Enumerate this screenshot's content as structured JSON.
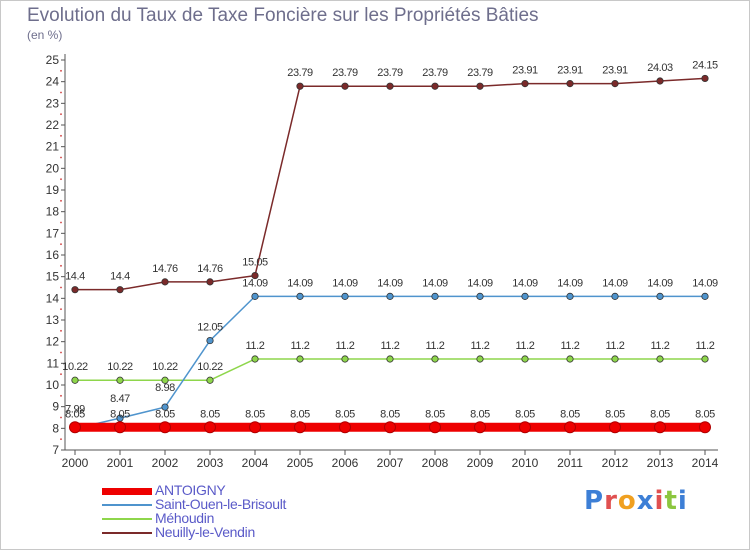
{
  "title": "Evolution du Taux de Taxe Foncière sur les Propriétés Bâties",
  "unit_label": "(en %)",
  "logo": {
    "letters": [
      "P",
      "r",
      "o",
      "x",
      "i",
      "t",
      "i"
    ],
    "colors": [
      "#3d7fd6",
      "#e05050",
      "#f0a020",
      "#3d7fd6",
      "#e05050",
      "#8cc63f",
      "#3d7fd6"
    ]
  },
  "chart_data": {
    "type": "line",
    "title": "Evolution du Taux de Taxe Foncière sur les Propriétés Bâties",
    "ylabel": "(en %)",
    "xlabel": "",
    "x": [
      "2000",
      "2001",
      "2002",
      "2003",
      "2004",
      "2005",
      "2006",
      "2007",
      "2008",
      "2009",
      "2010",
      "2011",
      "2012",
      "2013",
      "2014"
    ],
    "ylim": [
      7,
      25
    ],
    "yticks": [
      7,
      8,
      9,
      10,
      11,
      12,
      13,
      14,
      15,
      16,
      17,
      18,
      19,
      20,
      21,
      22,
      23,
      24,
      25
    ],
    "grid": false,
    "legend": "bottom-left",
    "series": [
      {
        "name": "ANTOIGNY",
        "color": "#ee0000",
        "values": [
          8.05,
          8.05,
          8.05,
          8.05,
          8.05,
          8.05,
          8.05,
          8.05,
          8.05,
          8.05,
          8.05,
          8.05,
          8.05,
          8.05,
          8.05
        ],
        "labels": [
          "8.05",
          "8.05",
          "8.05",
          "8.05",
          "8.05",
          "8.05",
          "8.05",
          "8.05",
          "8.05",
          "8.05",
          "8.05",
          "8.05",
          "8.05",
          "8.05",
          "8.05"
        ]
      },
      {
        "name": "Saint-Ouen-le-Brisoult",
        "color": "#4f94cd",
        "values": [
          7.99,
          8.47,
          8.98,
          12.05,
          14.09,
          14.09,
          14.09,
          14.09,
          14.09,
          14.09,
          14.09,
          14.09,
          14.09,
          14.09,
          14.09
        ],
        "labels": [
          "7.99",
          "8.47",
          "8.98",
          "12.05",
          "14.09",
          "14.09",
          "14.09",
          "14.09",
          "14.09",
          "14.09",
          "14.09",
          "14.09",
          "14.09",
          "14.09",
          "14.09"
        ]
      },
      {
        "name": "Méhoudin",
        "color": "#8ed64b",
        "values": [
          10.22,
          10.22,
          10.22,
          10.22,
          11.2,
          11.2,
          11.2,
          11.2,
          11.2,
          11.2,
          11.2,
          11.2,
          11.2,
          11.2,
          11.2
        ],
        "labels": [
          "10.22",
          "10.22",
          "10.22",
          "10.22",
          "11.2",
          "11.2",
          "11.2",
          "11.2",
          "11.2",
          "11.2",
          "11.2",
          "11.2",
          "11.2",
          "11.2",
          "11.2"
        ]
      },
      {
        "name": "Neuilly-le-Vendin",
        "color": "#7b2a2a",
        "values": [
          14.4,
          14.4,
          14.76,
          14.76,
          15.05,
          23.79,
          23.79,
          23.79,
          23.79,
          23.79,
          23.91,
          23.91,
          23.91,
          24.03,
          24.15
        ],
        "labels": [
          "14.4",
          "14.4",
          "14.76",
          "14.76",
          "15.05",
          "23.79",
          "23.79",
          "23.79",
          "23.79",
          "23.79",
          "23.91",
          "23.91",
          "23.91",
          "24.03",
          "24.15"
        ]
      }
    ]
  }
}
